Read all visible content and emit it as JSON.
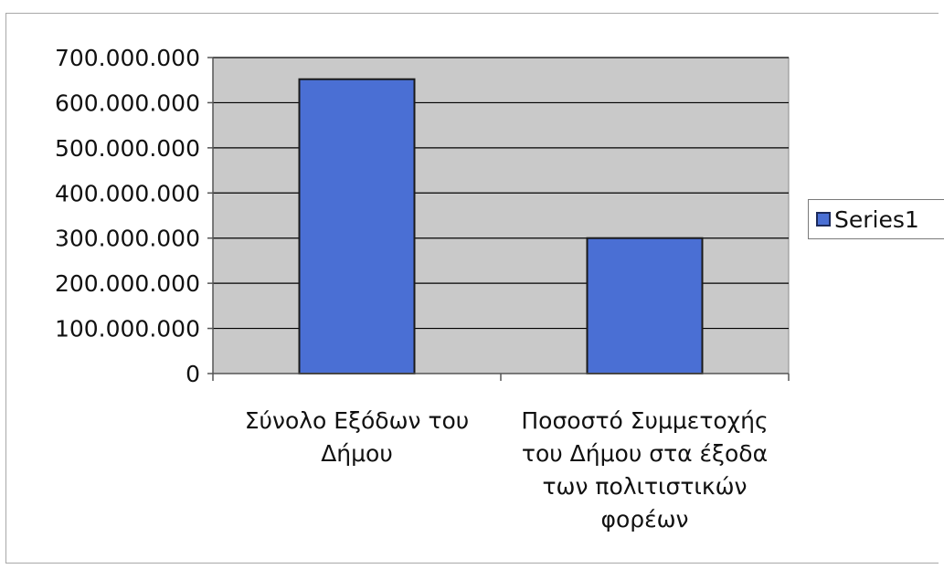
{
  "chart_data": {
    "type": "bar",
    "categories": [
      [
        "Σύνολο Εξόδων του",
        "Δήμου"
      ],
      [
        "Ποσοστό Συμμετοχής",
        "του Δήμου στα έξοδα",
        "των πολιτιστικών",
        "φορέων"
      ]
    ],
    "series": [
      {
        "name": "Series1",
        "values": [
          652000000,
          300000000
        ]
      }
    ],
    "yticks": [
      0,
      100000000,
      200000000,
      300000000,
      400000000,
      500000000,
      600000000,
      700000000
    ],
    "ytick_labels": [
      "0",
      "100.000.000",
      "200.000.000",
      "300.000.000",
      "400.000.000",
      "500.000.000",
      "600.000.000",
      "700.000.000"
    ],
    "ylim": [
      0,
      700000000
    ],
    "grid": true,
    "legend_position": "right",
    "colors": {
      "bar_fill": "#4a6fd4",
      "bar_edge": "#1a1a1a",
      "plot_bg": "#c9c9c9",
      "grid": "#000000"
    }
  }
}
